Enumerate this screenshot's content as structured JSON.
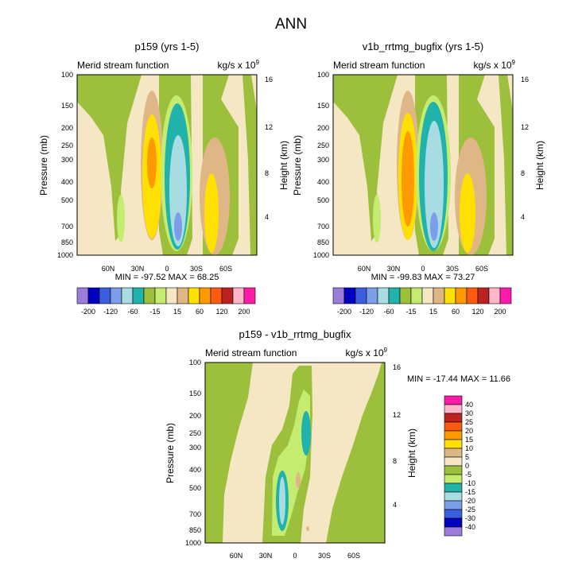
{
  "figure": {
    "title": "ANN"
  },
  "colors": {
    "bg": "#f5e6c4",
    "green": "#9cbf3c",
    "lightgreen": "#c4ec70",
    "teal": "#22b2ac",
    "lightblue": "#a8dce3",
    "blue": "#7c9ee8",
    "tan": "#dfb787",
    "yellow": "#ffe000",
    "orange": "#ff9900",
    "red": "#ff5a11",
    "purple": "#9a7ddb",
    "navy": "#0000c0",
    "royal": "#3a5ee0",
    "darkred": "#bb2222",
    "pink": "#ffb6c8",
    "magenta": "#ff1aaa"
  },
  "chart_data": [
    {
      "type": "heatmap",
      "title": "p159 (yrs 1-5)",
      "subtitle_left": "Merid stream function",
      "units_label": "kg/s x 10",
      "units_exp": "9",
      "ylabel": "Pressure (mb)",
      "y2label": "Height (km)",
      "yticks": [
        "100",
        "150",
        "200",
        "250",
        "300",
        "400",
        "500",
        "700",
        "850",
        "1000"
      ],
      "y2ticks": [
        "16",
        "12",
        "8",
        "4"
      ],
      "xticks": [
        "60N",
        "30N",
        "0",
        "30S",
        "60S"
      ],
      "stats": "MIN = -97.52  MAX =  68.25"
    },
    {
      "type": "heatmap",
      "title": "v1b_rrtmg_bugfix (yrs 1-5)",
      "subtitle_left": "Merid stream function",
      "units_label": "kg/s x 10",
      "units_exp": "9",
      "ylabel": "Pressure (mb)",
      "y2label": "Height (km)",
      "yticks": [
        "100",
        "150",
        "200",
        "250",
        "300",
        "400",
        "500",
        "700",
        "850",
        "1000"
      ],
      "y2ticks": [
        "16",
        "12",
        "8",
        "4"
      ],
      "xticks": [
        "60N",
        "30N",
        "0",
        "30S",
        "60S"
      ],
      "stats": "MIN = -99.83  MAX =  73.27"
    },
    {
      "type": "heatmap",
      "title": "p159 - v1b_rrtmg_bugfix",
      "subtitle_left": "Merid stream function",
      "units_label": "kg/s x 10",
      "units_exp": "9",
      "ylabel": "Pressure (mb)",
      "y2label": "Height (km)",
      "yticks": [
        "100",
        "150",
        "200",
        "250",
        "300",
        "400",
        "500",
        "700",
        "850",
        "1000"
      ],
      "y2ticks": [
        "16",
        "12",
        "8",
        "4"
      ],
      "xticks": [
        "60N",
        "30N",
        "0",
        "30S",
        "60S"
      ],
      "stats": "MIN = -17.44  MAX =  11.66"
    }
  ],
  "colorbars": {
    "top": {
      "colors": [
        "#9a7ddb",
        "#0000c0",
        "#3a5ee0",
        "#7c9ee8",
        "#a8dce3",
        "#22b2ac",
        "#9cbf3c",
        "#c4ec70",
        "#f5e6c4",
        "#dfb787",
        "#ffe000",
        "#ff9900",
        "#ff5a11",
        "#bb2222",
        "#ffb6c8",
        "#ff1aaa"
      ],
      "labels": [
        "-200",
        "-120",
        "-60",
        "-15",
        "15",
        "60",
        "120",
        "200"
      ]
    },
    "diff": {
      "colors": [
        "#ff1aaa",
        "#ffb6c8",
        "#bb2222",
        "#ff5a11",
        "#ff9900",
        "#ffe000",
        "#dfb787",
        "#f5e6c4",
        "#9cbf3c",
        "#c4ec70",
        "#22b2ac",
        "#a8dce3",
        "#7c9ee8",
        "#3a5ee0",
        "#0000c0",
        "#9a7ddb"
      ],
      "labels": [
        "40",
        "30",
        "25",
        "20",
        "15",
        "10",
        "5",
        "0",
        "-5",
        "-10",
        "-15",
        "-20",
        "-25",
        "-30",
        "-40"
      ]
    }
  }
}
